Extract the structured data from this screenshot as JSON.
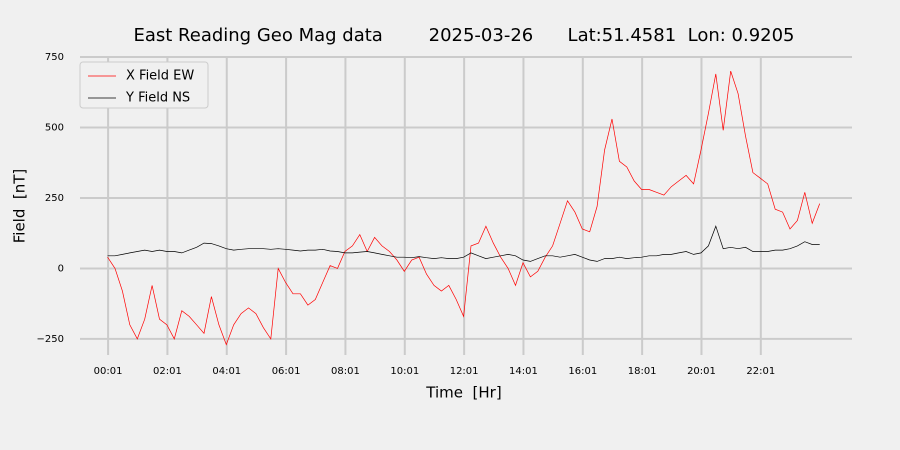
{
  "chart_data": {
    "type": "line",
    "title": "East Reading Geo Mag data        2025-03-26      Lat:51.4581  Lon: 0.9205",
    "xlabel": "Time  [Hr]",
    "ylabel": "Field  [nT]",
    "x": [
      0,
      0.25,
      0.5,
      0.75,
      1,
      1.25,
      1.5,
      1.75,
      2,
      2.25,
      2.5,
      2.75,
      3,
      3.25,
      3.5,
      3.75,
      4,
      4.25,
      4.5,
      4.75,
      5,
      5.25,
      5.5,
      5.75,
      6,
      6.25,
      6.5,
      6.75,
      7,
      7.25,
      7.5,
      7.75,
      8,
      8.25,
      8.5,
      8.75,
      9,
      9.25,
      9.5,
      9.75,
      10,
      10.25,
      10.5,
      10.75,
      11,
      11.25,
      11.5,
      11.75,
      12,
      12.25,
      12.5,
      12.75,
      13,
      13.25,
      13.5,
      13.75,
      14,
      14.25,
      14.5,
      14.75,
      15,
      15.25,
      15.5,
      15.75,
      16,
      16.25,
      16.5,
      16.75,
      17,
      17.25,
      17.5,
      17.75,
      18,
      18.25,
      18.5,
      18.75,
      19,
      19.25,
      19.5,
      19.75,
      20,
      20.25,
      20.5,
      20.75,
      21,
      21.25,
      21.5,
      21.75,
      22,
      22.25,
      22.5,
      22.75,
      23,
      23.25,
      23.5,
      23.75,
      24
    ],
    "series": [
      {
        "name": "X Field EW",
        "color": "#ff0000",
        "values": [
          40,
          0,
          -80,
          -200,
          -250,
          -180,
          -60,
          -180,
          -200,
          -250,
          -150,
          -170,
          -200,
          -230,
          -100,
          -200,
          -270,
          -200,
          -160,
          -140,
          -160,
          -210,
          -250,
          0,
          -50,
          -90,
          -90,
          -130,
          -110,
          -50,
          10,
          0,
          60,
          80,
          120,
          60,
          110,
          80,
          60,
          30,
          -10,
          30,
          40,
          -20,
          -60,
          -80,
          -60,
          -110,
          -170,
          80,
          90,
          150,
          90,
          40,
          0,
          -60,
          20,
          -30,
          -10,
          40,
          80,
          160,
          240,
          200,
          140,
          130,
          220,
          420,
          530,
          380,
          360,
          310,
          280,
          280,
          270,
          260,
          290,
          310,
          330,
          300,
          420,
          550,
          690,
          490,
          700,
          620,
          470,
          340,
          320,
          300,
          210,
          200,
          140,
          170,
          270,
          160,
          230
        ]
      },
      {
        "name": "Y Field NS",
        "color": "#000000",
        "values": [
          45,
          45,
          50,
          55,
          60,
          65,
          60,
          65,
          60,
          60,
          55,
          65,
          75,
          90,
          88,
          80,
          70,
          65,
          68,
          70,
          70,
          70,
          68,
          70,
          68,
          65,
          62,
          65,
          65,
          68,
          62,
          60,
          55,
          55,
          58,
          60,
          55,
          50,
          45,
          40,
          40,
          38,
          42,
          38,
          35,
          38,
          35,
          35,
          40,
          55,
          45,
          35,
          40,
          45,
          50,
          45,
          30,
          25,
          35,
          45,
          45,
          40,
          45,
          50,
          40,
          30,
          25,
          35,
          35,
          40,
          35,
          38,
          40,
          45,
          45,
          50,
          50,
          55,
          60,
          50,
          55,
          80,
          150,
          70,
          75,
          70,
          75,
          60,
          60,
          60,
          65,
          65,
          70,
          80,
          95,
          85,
          85
        ]
      }
    ],
    "xlim": [
      -0.93,
      25.09
    ],
    "xticks": [
      {
        "value": 0.0167,
        "label": "00:01"
      },
      {
        "value": 2.0167,
        "label": "02:01"
      },
      {
        "value": 4.0167,
        "label": "04:01"
      },
      {
        "value": 6.0167,
        "label": "06:01"
      },
      {
        "value": 8.0167,
        "label": "08:01"
      },
      {
        "value": 10.0167,
        "label": "10:01"
      },
      {
        "value": 12.0167,
        "label": "12:01"
      },
      {
        "value": 14.0167,
        "label": "14:01"
      },
      {
        "value": 16.0167,
        "label": "16:01"
      },
      {
        "value": 18.0167,
        "label": "18:01"
      },
      {
        "value": 20.0167,
        "label": "20:01"
      },
      {
        "value": 22.0167,
        "label": "22:01"
      }
    ],
    "ylim": [
      -307,
      750
    ],
    "yticks": [
      {
        "value": -250,
        "label": "−250"
      },
      0,
      250,
      500,
      750
    ],
    "grid": true,
    "legend": "upper left"
  }
}
